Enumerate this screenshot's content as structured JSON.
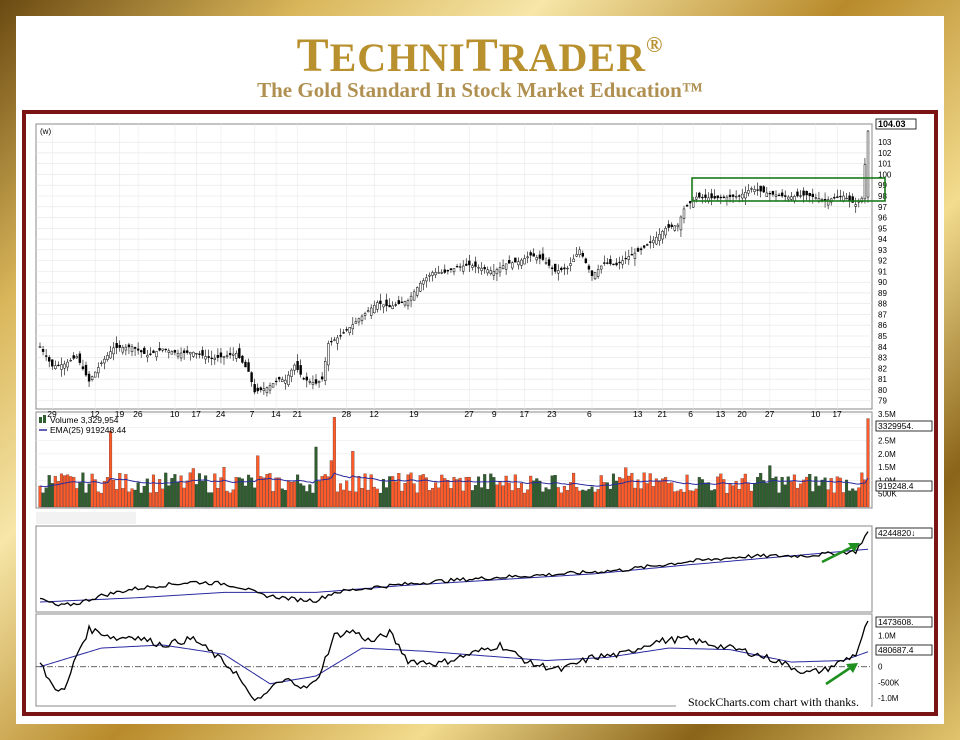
{
  "header": {
    "brand_first": "T",
    "brand_first_rest": "ECHNI",
    "brand_second": "T",
    "brand_second_rest": "RADER",
    "brand_mark": "®",
    "tagline": "The Gold Standard In Stock Market Education™"
  },
  "credit": "StockCharts.com chart with thanks.",
  "colors": {
    "up_volume": "#ff5a2a",
    "down_volume": "#2f5e2f",
    "ema": "#2a2aa0",
    "highlight_box": "#1a7a1a",
    "arrow": "#1f8f1f",
    "frame": "#7b1515"
  },
  "chart_data": [
    {
      "type": "candlestick",
      "panel": "price",
      "corner_label": "(w)",
      "last_value_label": "104.03",
      "x_tick_labels": [
        "29",
        "12",
        "19",
        "26",
        "10",
        "17",
        "24",
        "7",
        "14",
        "21",
        "28",
        "12",
        "19",
        "27",
        "9",
        "17",
        "23",
        "6",
        "13",
        "21",
        "6",
        "13",
        "20",
        "27",
        "10",
        "17"
      ],
      "y_tick_labels": [
        "103",
        "102",
        "101",
        "100",
        "99",
        "98",
        "97",
        "96",
        "95",
        "94",
        "93",
        "92",
        "91",
        "90",
        "89",
        "88",
        "87",
        "86",
        "85",
        "84",
        "83",
        "82",
        "81",
        "80",
        "79"
      ],
      "ylim": [
        78.5,
        104.5
      ],
      "anchors": [
        [
          0,
          84
        ],
        [
          4,
          82.2
        ],
        [
          8,
          82.4
        ],
        [
          12,
          83.1
        ],
        [
          16,
          80.8
        ],
        [
          20,
          82.5
        ],
        [
          24,
          83.9
        ],
        [
          30,
          84.0
        ],
        [
          35,
          83.2
        ],
        [
          40,
          83.8
        ],
        [
          45,
          83.4
        ],
        [
          50,
          83.5
        ],
        [
          56,
          82.9
        ],
        [
          60,
          83.1
        ],
        [
          64,
          83.4
        ],
        [
          68,
          81.7
        ],
        [
          70,
          79.8
        ],
        [
          74,
          80.2
        ],
        [
          78,
          81.0
        ],
        [
          80,
          80.9
        ],
        [
          83,
          82.3
        ],
        [
          86,
          81.0
        ],
        [
          90,
          80.6
        ],
        [
          92,
          81.0
        ],
        [
          94,
          84.3
        ],
        [
          98,
          85.0
        ],
        [
          104,
          86.6
        ],
        [
          110,
          88.1
        ],
        [
          114,
          87.7
        ],
        [
          120,
          88.3
        ],
        [
          124,
          89.9
        ],
        [
          128,
          90.9
        ],
        [
          132,
          90.9
        ],
        [
          136,
          91.4
        ],
        [
          140,
          91.6
        ],
        [
          144,
          91.3
        ],
        [
          148,
          91.0
        ],
        [
          152,
          91.7
        ],
        [
          156,
          91.9
        ],
        [
          160,
          92.5
        ],
        [
          164,
          92.1
        ],
        [
          168,
          91.0
        ],
        [
          172,
          91.3
        ],
        [
          176,
          93.0
        ],
        [
          180,
          90.6
        ],
        [
          184,
          91.8
        ],
        [
          188,
          91.6
        ],
        [
          192,
          92.4
        ],
        [
          196,
          93.0
        ],
        [
          200,
          93.9
        ],
        [
          204,
          95.0
        ],
        [
          208,
          95.3
        ],
        [
          210,
          96.8
        ],
        [
          214,
          97.9
        ],
        [
          220,
          97.8
        ],
        [
          228,
          98.0
        ],
        [
          232,
          98.7
        ],
        [
          238,
          98.2
        ],
        [
          244,
          97.9
        ],
        [
          250,
          98.1
        ],
        [
          256,
          97.6
        ],
        [
          262,
          98.0
        ],
        [
          266,
          97.2
        ],
        [
          268,
          97.8
        ],
        [
          270,
          104.03
        ]
      ],
      "annotations": [
        "green box around consolidation 97-99",
        "final candle breakout to 104.03"
      ]
    },
    {
      "type": "bar",
      "panel": "volume",
      "legend": [
        "Volume 3,329,954",
        "EMA(25) 919248.44"
      ],
      "y_tick_labels": [
        "3.5M",
        "3.0M",
        "2.5M",
        "2.0M",
        "1.5M",
        "1.0M",
        "500K"
      ],
      "value_labels": [
        "3329954.",
        "919248.4"
      ],
      "ylim": [
        0,
        3500000
      ],
      "last_volume": 3329954,
      "ema_last": 919248.44,
      "spikes": [
        [
          23,
          2850000
        ],
        [
          50,
          1450000
        ],
        [
          60,
          1500000
        ],
        [
          71,
          1930000
        ],
        [
          90,
          2260000
        ],
        [
          95,
          1750000
        ],
        [
          96,
          3380000
        ],
        [
          102,
          2100000
        ],
        [
          108,
          1220000
        ],
        [
          168,
          1200000
        ],
        [
          191,
          1480000
        ],
        [
          238,
          1560000
        ],
        [
          270,
          3329954
        ]
      ]
    },
    {
      "type": "line",
      "panel": "indicator-1",
      "value_label": "4244820↓",
      "anchors": [
        [
          0,
          0.14
        ],
        [
          6,
          0.05
        ],
        [
          12,
          0.08
        ],
        [
          20,
          0.18
        ],
        [
          30,
          0.26
        ],
        [
          40,
          0.31
        ],
        [
          50,
          0.35
        ],
        [
          60,
          0.33
        ],
        [
          66,
          0.28
        ],
        [
          72,
          0.19
        ],
        [
          78,
          0.16
        ],
        [
          84,
          0.13
        ],
        [
          90,
          0.12
        ],
        [
          96,
          0.22
        ],
        [
          110,
          0.29
        ],
        [
          130,
          0.36
        ],
        [
          150,
          0.41
        ],
        [
          170,
          0.45
        ],
        [
          190,
          0.5
        ],
        [
          210,
          0.6
        ],
        [
          230,
          0.67
        ],
        [
          250,
          0.68
        ],
        [
          262,
          0.72
        ],
        [
          266,
          0.73
        ],
        [
          270,
          0.98
        ]
      ],
      "ema_anchors": [
        [
          0,
          0.1
        ],
        [
          30,
          0.15
        ],
        [
          60,
          0.22
        ],
        [
          90,
          0.22
        ],
        [
          120,
          0.31
        ],
        [
          150,
          0.38
        ],
        [
          180,
          0.45
        ],
        [
          210,
          0.56
        ],
        [
          240,
          0.66
        ],
        [
          270,
          0.76
        ]
      ],
      "annotations": [
        "green arrow pointing to final rise"
      ]
    },
    {
      "type": "line",
      "panel": "indicator-2",
      "y_tick_labels": [
        "1.0M",
        "0",
        "-500K",
        "-1.0M"
      ],
      "value_labels": [
        "1473608.",
        "480687.4"
      ],
      "ylim": [
        -1200000,
        1600000
      ],
      "anchors": [
        [
          0,
          100000
        ],
        [
          4,
          -600000
        ],
        [
          8,
          -800000
        ],
        [
          12,
          400000
        ],
        [
          16,
          1200000
        ],
        [
          20,
          1100000
        ],
        [
          25,
          900000
        ],
        [
          30,
          1000000
        ],
        [
          40,
          700000
        ],
        [
          50,
          900000
        ],
        [
          58,
          300000
        ],
        [
          64,
          -200000
        ],
        [
          68,
          -900000
        ],
        [
          72,
          -1100000
        ],
        [
          76,
          -600000
        ],
        [
          82,
          -400000
        ],
        [
          86,
          -700000
        ],
        [
          90,
          -500000
        ],
        [
          96,
          1000000
        ],
        [
          102,
          1150000
        ],
        [
          108,
          800000
        ],
        [
          114,
          1100000
        ],
        [
          120,
          200000
        ],
        [
          130,
          100000
        ],
        [
          140,
          400000
        ],
        [
          150,
          700000
        ],
        [
          160,
          100000
        ],
        [
          170,
          -100000
        ],
        [
          180,
          300000
        ],
        [
          190,
          400000
        ],
        [
          200,
          800000
        ],
        [
          210,
          900000
        ],
        [
          220,
          700000
        ],
        [
          230,
          500000
        ],
        [
          240,
          200000
        ],
        [
          250,
          -200000
        ],
        [
          256,
          -100000
        ],
        [
          262,
          200000
        ],
        [
          266,
          400000
        ],
        [
          270,
          1473608
        ]
      ],
      "ema_anchors": [
        [
          0,
          0
        ],
        [
          20,
          600000
        ],
        [
          40,
          700000
        ],
        [
          60,
          400000
        ],
        [
          75,
          -550000
        ],
        [
          90,
          -300000
        ],
        [
          105,
          600000
        ],
        [
          125,
          500000
        ],
        [
          145,
          350000
        ],
        [
          165,
          200000
        ],
        [
          185,
          300000
        ],
        [
          205,
          600000
        ],
        [
          225,
          550000
        ],
        [
          245,
          150000
        ],
        [
          262,
          200000
        ],
        [
          270,
          480687
        ]
      ],
      "annotations": [
        "green arrow pointing to final rise",
        "dash-dot zero line"
      ]
    }
  ]
}
